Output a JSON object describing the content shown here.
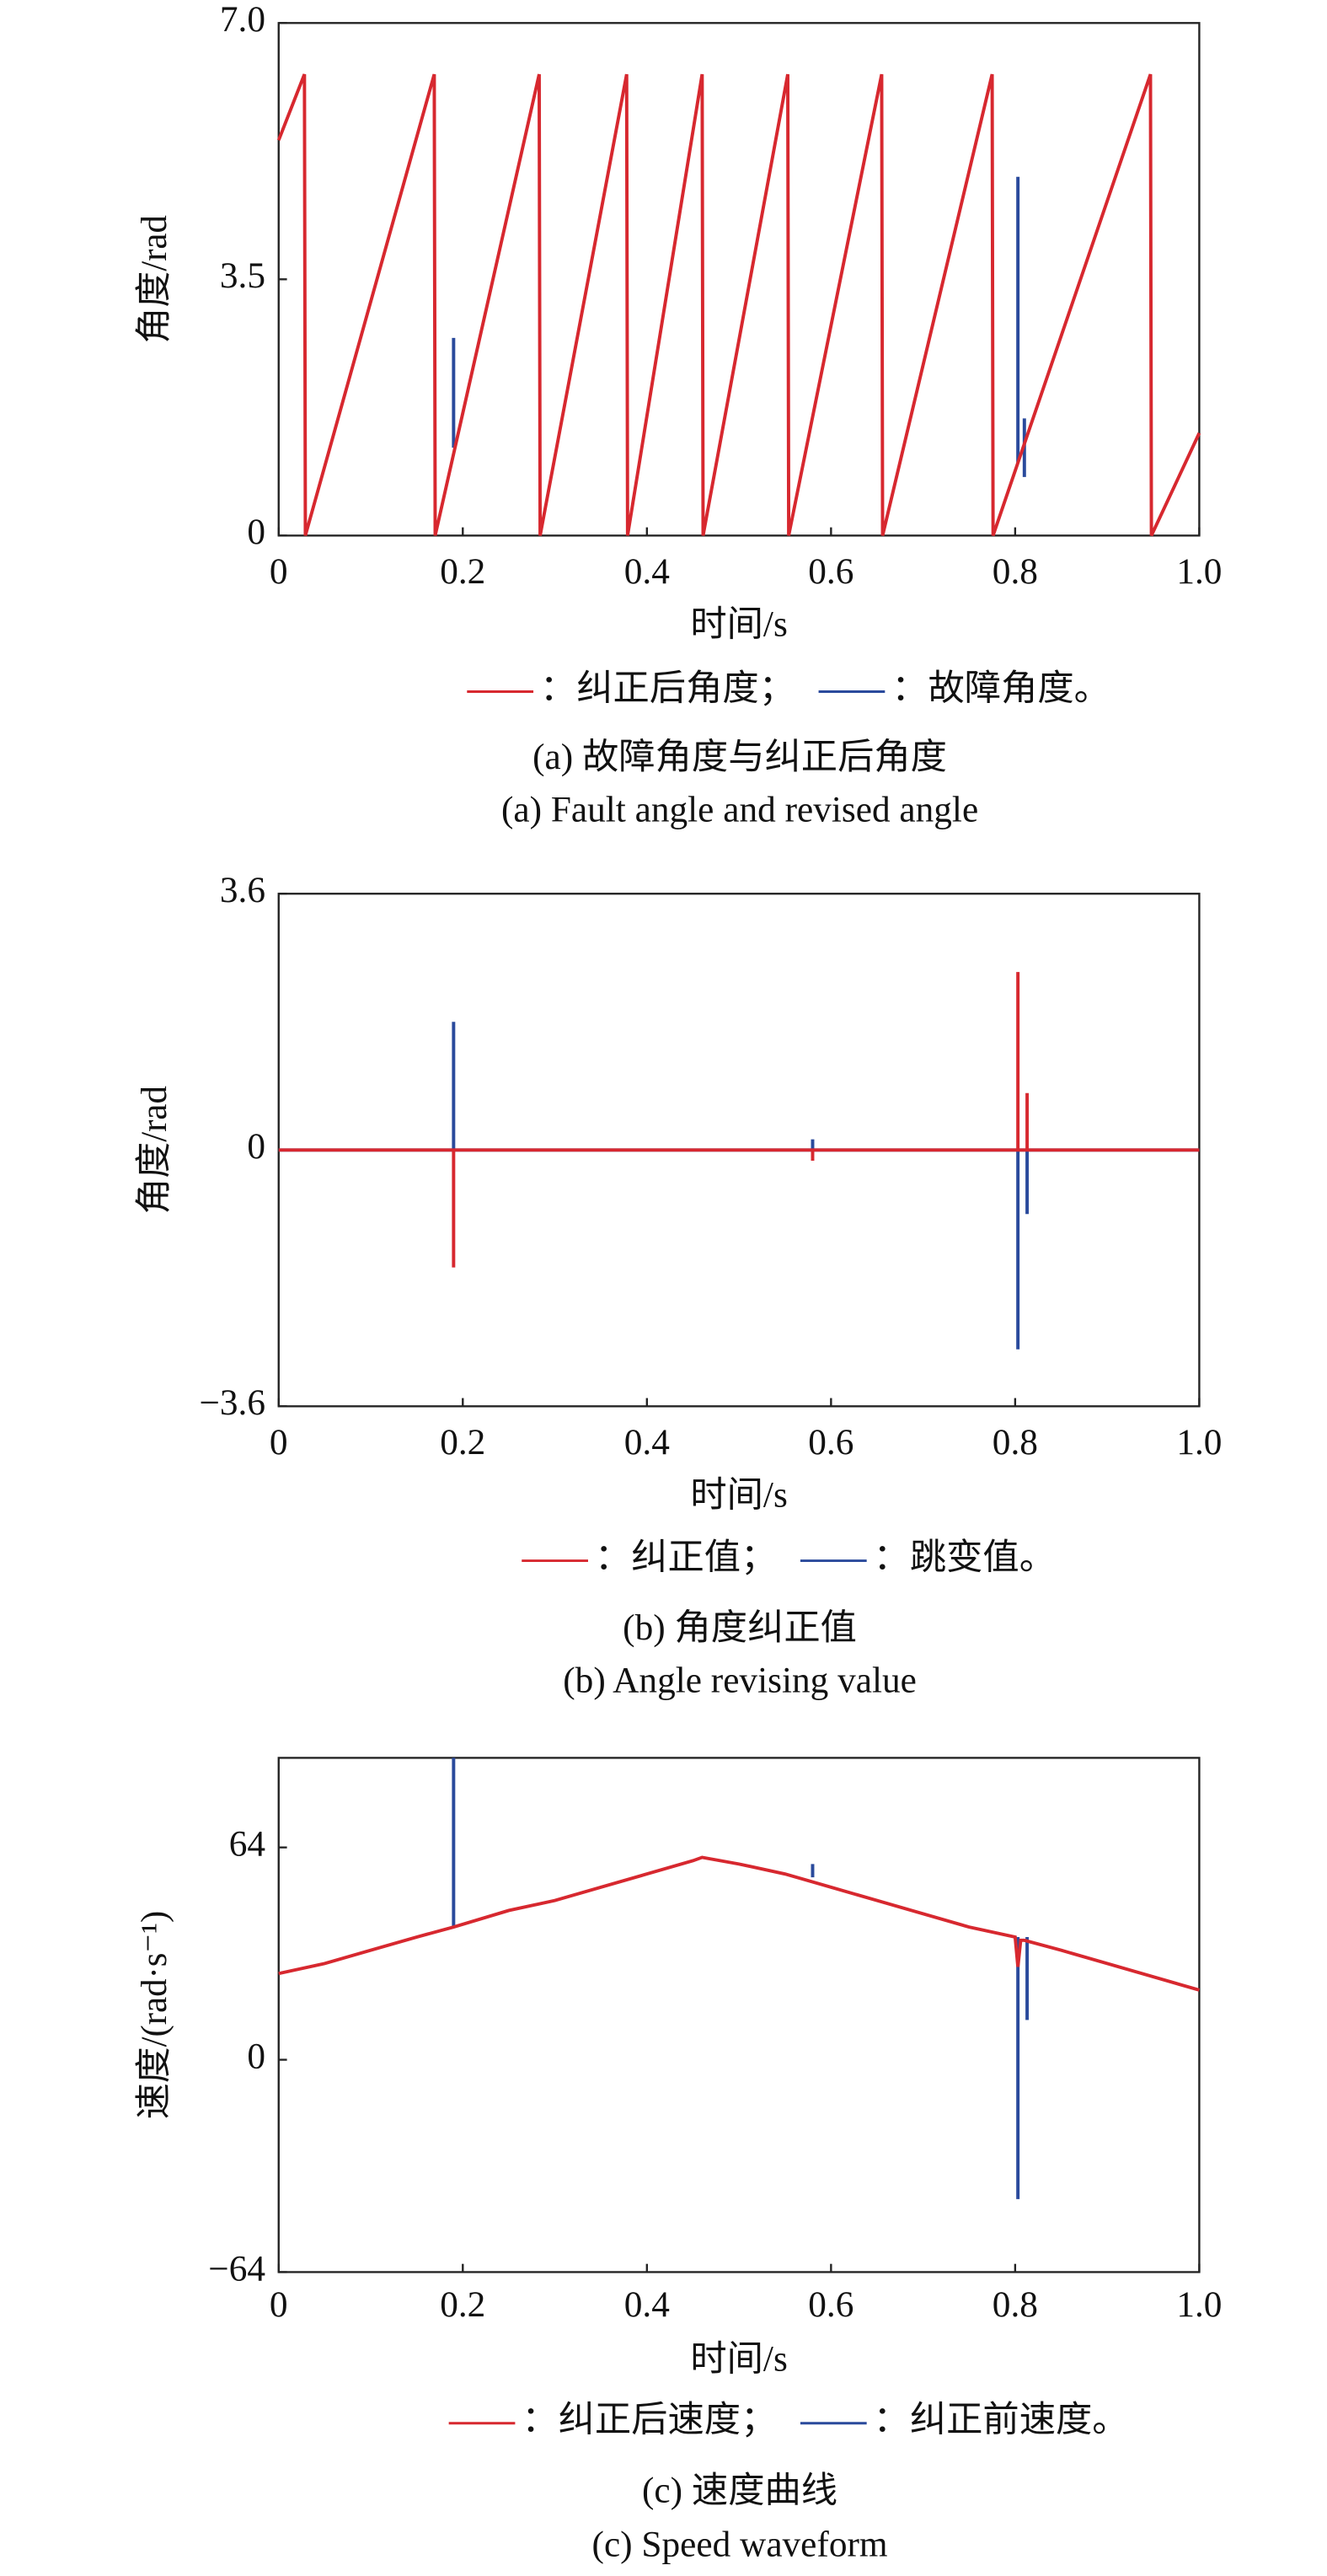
{
  "chart_data": [
    {
      "type": "line",
      "title": "(a) 故障角度与纠正后角度",
      "subtitle": "(a) Fault angle and revised angle",
      "x_label": "时间/s",
      "y_label": "角度/rad",
      "xlim": [
        0,
        1
      ],
      "ylim": [
        0,
        7
      ],
      "xticks": [
        0,
        0.2,
        0.4,
        0.6,
        0.8,
        {
          "value": 1,
          "label": "1.0"
        }
      ],
      "yticks": [
        0,
        3.5,
        {
          "value": 7,
          "label": "7.0"
        }
      ],
      "series": [
        {
          "name": "：故障角度。",
          "color": "#2a4a9c",
          "x": [
            0.19,
            0.19,
            0.5,
            0.803,
            0.803,
            0.81,
            0.81,
            0.81
          ],
          "values": [
            1.2,
            2.7,
            null,
            1.0,
            4.9,
            null,
            1.6,
            0.8
          ]
        },
        {
          "name": "：纠正后角度；",
          "color": "#d7282f",
          "x": [
            0,
            0.028,
            0.029,
            0.169,
            0.17,
            0.283,
            0.284,
            0.378,
            0.379,
            0.46,
            0.461,
            0.553,
            0.554,
            0.655,
            0.656,
            0.775,
            0.776,
            0.947,
            0.948,
            1
          ],
          "values": [
            5.4,
            6.3,
            0,
            6.3,
            0,
            6.3,
            0,
            6.3,
            0,
            6.3,
            0,
            6.3,
            0,
            6.3,
            0,
            6.3,
            0,
            6.3,
            0,
            1.4
          ]
        }
      ]
    },
    {
      "type": "line",
      "title": "(b) 角度纠正值",
      "subtitle": "(b) Angle revising value",
      "x_label": "时间/s",
      "y_label": "角度/rad",
      "xlim": [
        0,
        1
      ],
      "ylim": [
        -3.6,
        3.6
      ],
      "xticks": [
        0,
        0.2,
        0.4,
        0.6,
        0.8,
        {
          "value": 1,
          "label": "1.0"
        }
      ],
      "yticks": [
        {
          "value": -3.6,
          "label": "−3.6"
        },
        0,
        3.6
      ],
      "series": [
        {
          "name": "：跳变值。",
          "color": "#2a4a9c",
          "x": [
            0,
            0.19,
            0.19,
            0.19,
            0.58,
            0.58,
            0.58,
            0.803,
            0.803,
            0.803,
            0.813,
            0.813,
            0.813,
            1
          ],
          "values": [
            0,
            0,
            1.8,
            0,
            0,
            0.15,
            0,
            0,
            -2.8,
            0,
            0,
            -0.9,
            0,
            0
          ]
        },
        {
          "name": "：纠正值；",
          "color": "#d7282f",
          "x": [
            0,
            0.19,
            0.19,
            0.19,
            0.58,
            0.58,
            0.58,
            0.803,
            0.803,
            0.803,
            0.813,
            0.813,
            0.813,
            1
          ],
          "values": [
            0,
            0,
            -1.65,
            0,
            0,
            -0.15,
            0,
            0,
            2.5,
            0,
            0,
            0.8,
            0,
            0
          ]
        }
      ]
    },
    {
      "type": "line",
      "title": "(c) 速度曲线",
      "subtitle": "(c) Speed waveform",
      "x_label": "时间/s",
      "y_label": "速度/(rad·s⁻¹)",
      "xlim": [
        0,
        1
      ],
      "ylim": [
        -64,
        91
      ],
      "xticks": [
        0,
        0.2,
        0.4,
        0.6,
        0.8,
        {
          "value": 1,
          "label": "1.0"
        }
      ],
      "yticks": [
        {
          "value": -64,
          "label": "−64"
        },
        0,
        64
      ],
      "series": [
        {
          "name": "：纠正前速度。",
          "color": "#2a4a9c",
          "x": [
            0.19,
            0.19,
            0.3,
            0.58,
            0.58,
            0.7,
            0.803,
            0.803,
            0.9,
            0.813,
            0.813
          ],
          "values": [
            40,
            91,
            null,
            55,
            59,
            null,
            37,
            -42,
            null,
            37,
            12
          ]
        },
        {
          "name": "：纠正后速度；",
          "color": "#d7282f",
          "x": [
            0,
            0.05,
            0.1,
            0.15,
            0.19,
            0.25,
            0.3,
            0.35,
            0.4,
            0.45,
            0.46,
            0.5,
            0.55,
            0.6,
            0.65,
            0.7,
            0.75,
            0.8,
            0.803,
            0.806,
            0.81,
            0.85,
            0.9,
            0.95,
            1
          ],
          "values": [
            26,
            29,
            33,
            37,
            40,
            45,
            48,
            52,
            56,
            60,
            61,
            59,
            56,
            52,
            48,
            44,
            40,
            37,
            28,
            36,
            36,
            33,
            29,
            25,
            21
          ]
        }
      ]
    }
  ]
}
